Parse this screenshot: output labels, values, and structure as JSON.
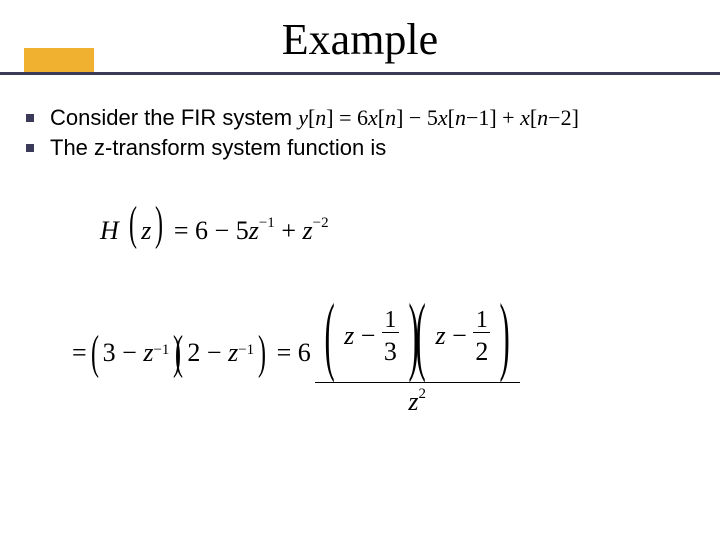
{
  "title": "Example",
  "bullets": [
    {
      "prefix": "Consider the FIR system ",
      "math": "y[n] = 6x[n] − 5x[n−1] + x[n−2]"
    },
    {
      "prefix": "The z-transform system function is",
      "math": ""
    }
  ],
  "eq1": {
    "lhs": "H",
    "of": "z",
    "eq": "=",
    "t1": "6",
    "t2": "− 5",
    "z": "z",
    "e1": "−1",
    "t3": "+ ",
    "e2": "−2"
  },
  "eq2": {
    "eq": "=",
    "f1a": "3 −",
    "z": "z",
    "e1": "−1",
    "f2a": "2 −",
    "eq2": "= 6",
    "n1": "1",
    "d1": "3",
    "n2": "1",
    "d2": "2",
    "den": "z",
    "dene": "2",
    "minus": "−"
  },
  "colors": {
    "accent": "#f0b030",
    "line": "#3b3b59",
    "bg": "#ffffff"
  }
}
